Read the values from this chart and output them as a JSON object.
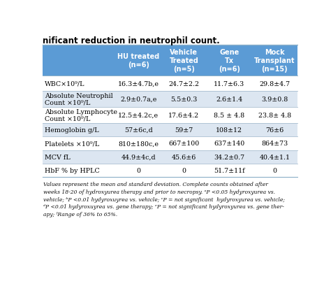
{
  "title_text": "nificant reduction in neutrophil count.",
  "header_bg": "#5b9bd5",
  "alt_row_bg": "#dce6f1",
  "white_row_bg": "#ffffff",
  "header_text_color": "#ffffff",
  "body_text_color": "#000000",
  "col_headers": [
    "HU treated\n(n=6)",
    "Vehicle\nTreated\n(n=5)",
    "Gene\nTx\n(n=6)",
    "Mock\nTransplant\n(n=15)"
  ],
  "row_labels": [
    "WBC×10⁹/L",
    "Absolute Neutrophil\nCount ×10⁹/L",
    "Absolute Lymphocyte\nCount ×10⁹/L",
    "Hemoglobin g/L",
    "Platelets ×10⁹/L",
    "MCV fL",
    "HbF % by HPLC"
  ],
  "data": [
    [
      "16.3±4.7b,e",
      "24.7±2.2",
      "11.7±6.3",
      "29.8±4.7"
    ],
    [
      "2.9±0.7a,e",
      "5.5±0.3",
      "2.6±1.4",
      "3.9±0.8"
    ],
    [
      "12.5±4.2c,e",
      "17.6±4.2",
      "8.5 ± 4.8",
      "23.8± 4.8"
    ],
    [
      "57±6c,d",
      "59±7",
      "108±12",
      "76±6"
    ],
    [
      "810±180c,e",
      "667±100",
      "637±140",
      "864±73"
    ],
    [
      "44.9±4c,d",
      "45.6±6",
      "34.2±0.7",
      "40.4±1.1"
    ],
    [
      "0",
      "0",
      "51.7±11f",
      "0"
    ]
  ],
  "footnote": "Values represent the mean and standard deviation. Complete counts obtained after\nweeks 18-20 of hydroxyurea therapy and prior to necropsy. ᵃP <0.05 hydyroxyurea vs.\nvehicle; ᵇP <0.01 hydyroxuyrea vs. vehicle; ᶜP = not significant  hydyroxyurea vs. vehicle;\nᵈP <0.01 hydyroxuyrea vs. gene therapy; ᵉP = not significant hydyroxyurea vs. gene ther-\napy; ᶠRange of 36% to 65%.",
  "row_is_alt": [
    false,
    true,
    false,
    true,
    false,
    true,
    false
  ]
}
